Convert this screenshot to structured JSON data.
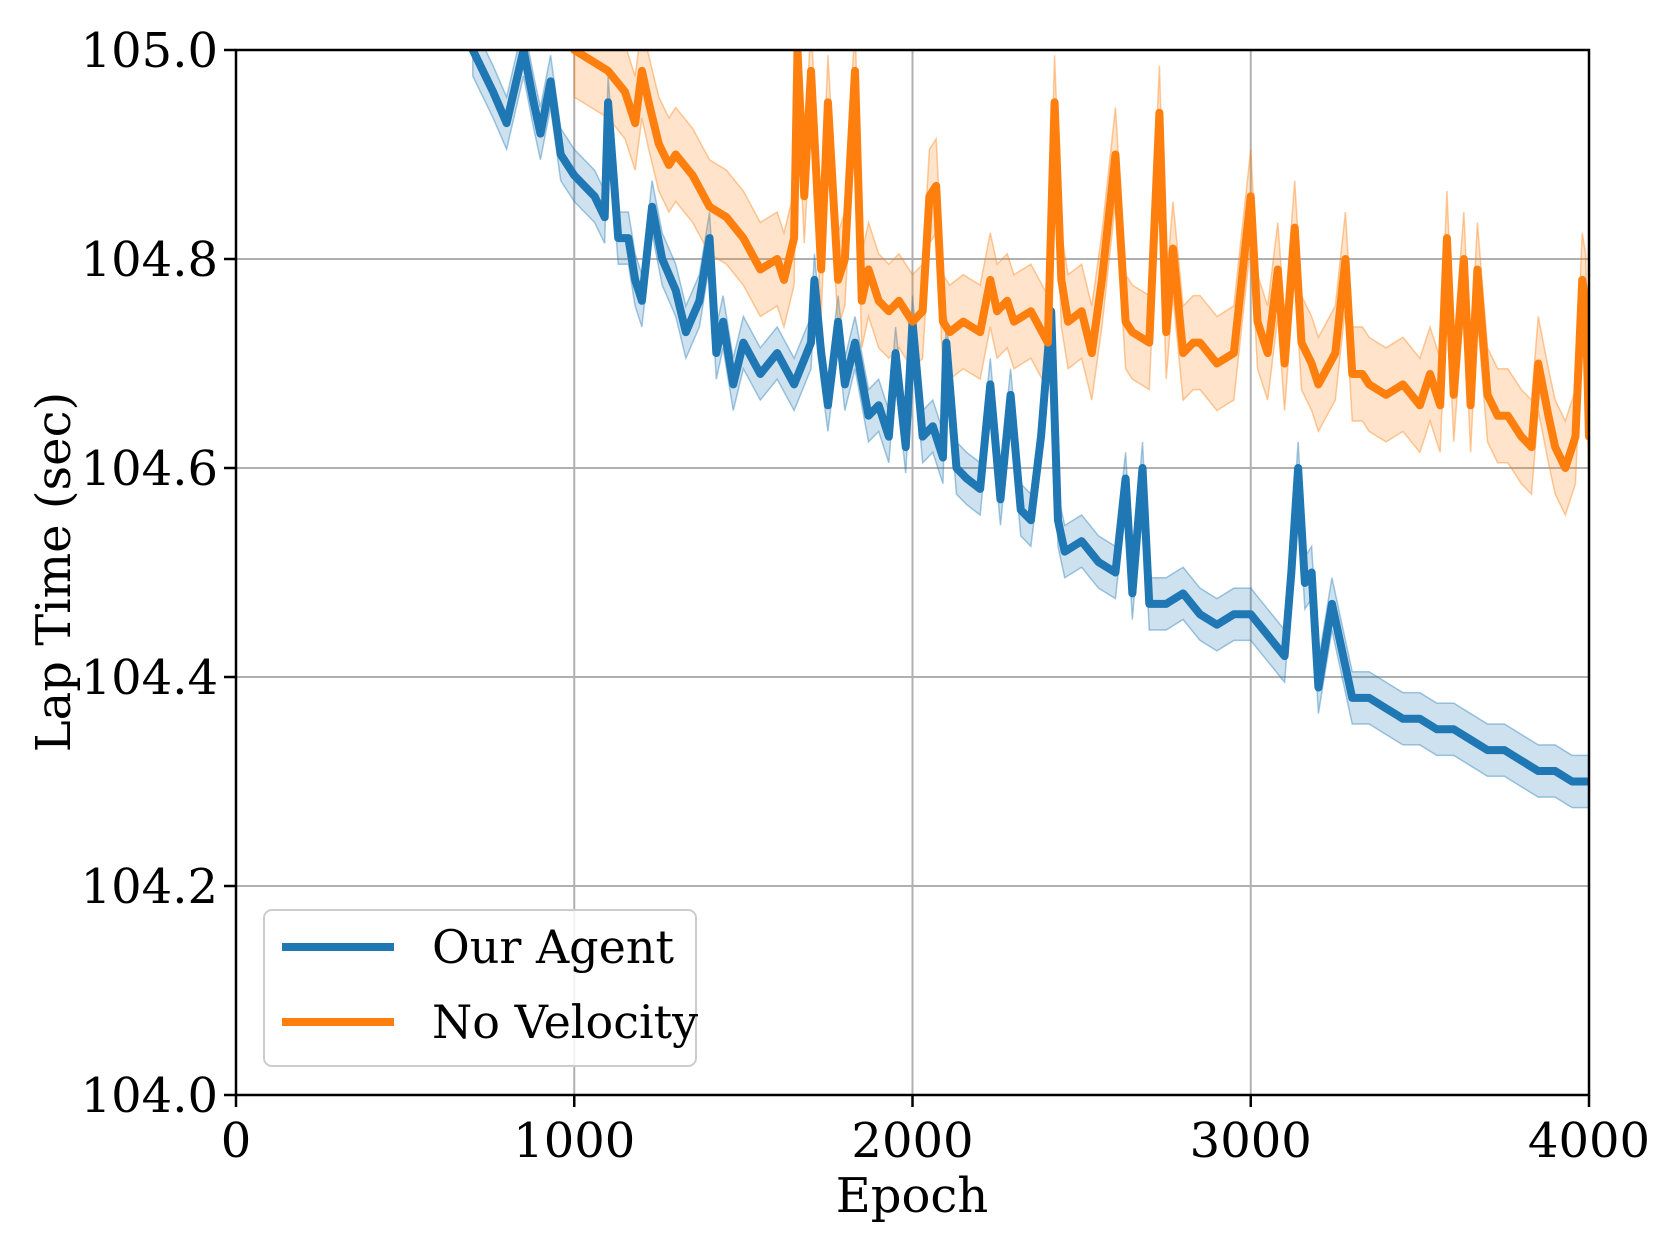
{
  "chart_data": {
    "type": "line",
    "title": "",
    "xlabel": "Epoch",
    "ylabel": "Lap Time (sec)",
    "xlim": [
      0,
      4000
    ],
    "ylim": [
      104.0,
      105.0
    ],
    "grid": true,
    "legend_position": "bottom-left",
    "x_ticks": [
      0,
      1000,
      2000,
      3000,
      4000
    ],
    "x_tick_labels": [
      "0",
      "1000",
      "2000",
      "3000",
      "4000"
    ],
    "y_ticks": [
      104.0,
      104.2,
      104.4,
      104.6,
      104.8,
      105.0
    ],
    "y_tick_labels": [
      "104.0",
      "104.2",
      "104.4",
      "104.6",
      "104.8",
      "105.0"
    ],
    "series": [
      {
        "name": "Our Agent",
        "color": "#1f77b4",
        "band_spread": 0.025,
        "x": [
          700,
          760,
          800,
          850,
          880,
          900,
          930,
          960,
          1000,
          1030,
          1060,
          1090,
          1100,
          1130,
          1160,
          1180,
          1200,
          1230,
          1260,
          1300,
          1330,
          1370,
          1400,
          1420,
          1440,
          1470,
          1500,
          1550,
          1600,
          1650,
          1700,
          1710,
          1730,
          1750,
          1780,
          1800,
          1830,
          1870,
          1900,
          1930,
          1950,
          1980,
          2000,
          2030,
          2060,
          2090,
          2100,
          2130,
          2160,
          2200,
          2230,
          2260,
          2290,
          2320,
          2350,
          2380,
          2410,
          2430,
          2450,
          2500,
          2550,
          2600,
          2630,
          2650,
          2680,
          2700,
          2750,
          2800,
          2850,
          2900,
          2950,
          3000,
          3050,
          3100,
          3120,
          3140,
          3160,
          3180,
          3200,
          3240,
          3300,
          3350,
          3400,
          3450,
          3500,
          3550,
          3600,
          3650,
          3700,
          3750,
          3800,
          3850,
          3900,
          3950,
          4000
        ],
        "values": [
          105.0,
          104.96,
          104.93,
          105.0,
          104.95,
          104.92,
          104.97,
          104.9,
          104.88,
          104.87,
          104.86,
          104.84,
          104.95,
          104.82,
          104.82,
          104.78,
          104.76,
          104.85,
          104.8,
          104.77,
          104.73,
          104.76,
          104.82,
          104.71,
          104.74,
          104.68,
          104.72,
          104.69,
          104.71,
          104.68,
          104.72,
          104.78,
          104.71,
          104.66,
          104.74,
          104.68,
          104.72,
          104.65,
          104.66,
          104.63,
          104.71,
          104.62,
          104.74,
          104.63,
          104.64,
          104.61,
          104.72,
          104.6,
          104.59,
          104.58,
          104.68,
          104.57,
          104.67,
          104.56,
          104.55,
          104.63,
          104.75,
          104.55,
          104.52,
          104.53,
          104.51,
          104.5,
          104.59,
          104.48,
          104.6,
          104.47,
          104.47,
          104.48,
          104.46,
          104.45,
          104.46,
          104.46,
          104.44,
          104.42,
          104.5,
          104.6,
          104.49,
          104.5,
          104.39,
          104.47,
          104.38,
          104.38,
          104.37,
          104.36,
          104.36,
          104.35,
          104.35,
          104.34,
          104.33,
          104.33,
          104.32,
          104.31,
          104.31,
          104.3,
          104.3
        ]
      },
      {
        "name": "No Velocity",
        "color": "#ff7f0e",
        "band_spread": 0.045,
        "x": [
          1000,
          1050,
          1100,
          1150,
          1180,
          1200,
          1220,
          1250,
          1280,
          1300,
          1350,
          1400,
          1450,
          1500,
          1550,
          1600,
          1620,
          1650,
          1660,
          1680,
          1700,
          1730,
          1750,
          1780,
          1800,
          1830,
          1850,
          1870,
          1900,
          1930,
          1960,
          2000,
          2030,
          2050,
          2070,
          2090,
          2110,
          2150,
          2200,
          2230,
          2250,
          2280,
          2300,
          2350,
          2400,
          2420,
          2440,
          2460,
          2500,
          2530,
          2560,
          2600,
          2630,
          2650,
          2700,
          2730,
          2750,
          2770,
          2800,
          2830,
          2850,
          2900,
          2950,
          3000,
          3020,
          3050,
          3080,
          3100,
          3130,
          3150,
          3180,
          3200,
          3250,
          3280,
          3300,
          3330,
          3350,
          3400,
          3450,
          3500,
          3530,
          3560,
          3580,
          3600,
          3630,
          3650,
          3670,
          3700,
          3730,
          3760,
          3800,
          3830,
          3850,
          3880,
          3900,
          3930,
          3960,
          3980,
          3990,
          4000
        ],
        "values": [
          105.0,
          104.99,
          104.98,
          104.96,
          104.93,
          104.98,
          104.95,
          104.91,
          104.89,
          104.9,
          104.88,
          104.85,
          104.84,
          104.82,
          104.79,
          104.8,
          104.78,
          104.82,
          105.0,
          104.86,
          104.98,
          104.79,
          104.95,
          104.78,
          104.8,
          104.98,
          104.76,
          104.79,
          104.76,
          104.75,
          104.76,
          104.74,
          104.75,
          104.86,
          104.87,
          104.74,
          104.73,
          104.74,
          104.73,
          104.78,
          104.75,
          104.76,
          104.74,
          104.75,
          104.72,
          104.95,
          104.78,
          104.74,
          104.75,
          104.71,
          104.78,
          104.9,
          104.74,
          104.73,
          104.72,
          104.94,
          104.73,
          104.81,
          104.71,
          104.72,
          104.72,
          104.7,
          104.71,
          104.86,
          104.74,
          104.71,
          104.79,
          104.7,
          104.83,
          104.72,
          104.7,
          104.68,
          104.71,
          104.8,
          104.69,
          104.69,
          104.68,
          104.67,
          104.68,
          104.66,
          104.69,
          104.66,
          104.82,
          104.67,
          104.8,
          104.66,
          104.79,
          104.67,
          104.65,
          104.65,
          104.63,
          104.62,
          104.7,
          104.65,
          104.62,
          104.6,
          104.63,
          104.78,
          104.76,
          104.63
        ]
      }
    ]
  }
}
